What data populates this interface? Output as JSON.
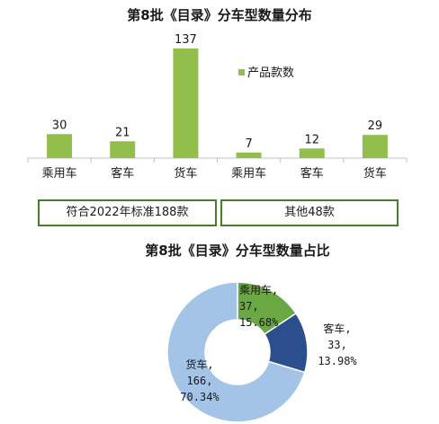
{
  "chart_data": [
    {
      "type": "bar",
      "title": "第8批《目录》分车型数量分布",
      "categories": [
        "乘用车",
        "客车",
        "货车",
        "乘用车",
        "客车",
        "货车"
      ],
      "groups": [
        {
          "label": "符合2022年标准188款",
          "categories": [
            "乘用车",
            "客车",
            "货车"
          ],
          "values": [
            30,
            21,
            137
          ]
        },
        {
          "label": "其他48款",
          "categories": [
            "乘用车",
            "客车",
            "货车"
          ],
          "values": [
            7,
            12,
            29
          ]
        }
      ],
      "series": [
        {
          "name": "产品款数",
          "values": [
            30,
            21,
            137,
            7,
            12,
            29
          ],
          "color": "#92be4c"
        }
      ],
      "legend": "top-right"
    },
    {
      "type": "pie",
      "subtype": "donut",
      "title": "第8批《目录》分车型数量占比",
      "slices": [
        {
          "name": "乘用车",
          "value": 37,
          "percent": "15.68%",
          "color": "#6aa843"
        },
        {
          "name": "客车",
          "value": 33,
          "percent": "13.98%",
          "color": "#2b4e8c"
        },
        {
          "name": "货车",
          "value": 166,
          "percent": "70.34%",
          "color": "#a3c4e6"
        }
      ]
    }
  ]
}
